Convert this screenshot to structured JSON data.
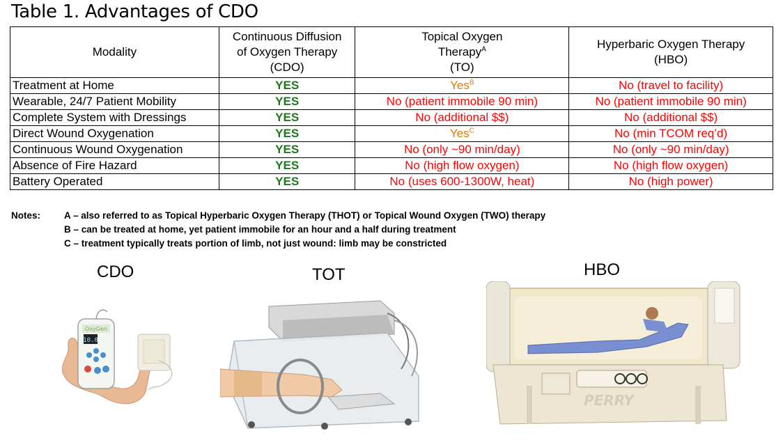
{
  "title": "Table 1. Advantages of CDO",
  "table": {
    "headers": [
      {
        "lines": [
          "Modality"
        ]
      },
      {
        "lines": [
          "Continuous Diffusion",
          "of Oxygen Therapy",
          "(CDO)"
        ]
      },
      {
        "lines": [
          "Topical Oxygen",
          "Therapy",
          "(TO)"
        ],
        "sup": "A"
      },
      {
        "lines": [
          "Hyperbaric Oxygen Therapy",
          "(HBO)"
        ]
      }
    ],
    "rows": [
      {
        "label": "Treatment at Home",
        "cdo": "YES",
        "to": "Yes",
        "to_sup": "B",
        "hbo": "No (travel to facility)"
      },
      {
        "label": "Wearable, 24/7 Patient Mobility",
        "cdo": "YES",
        "to": "No (patient immobile 90 min)",
        "hbo": "No (patient immobile 90 min)"
      },
      {
        "label": "Complete System with Dressings",
        "cdo": "YES",
        "to": "No (additional $$)",
        "hbo": "No (additional $$)"
      },
      {
        "label": "Direct Wound Oxygenation",
        "cdo": "YES",
        "to": "Yes",
        "to_sup": "C",
        "hbo": "No (min TCOM req’d)"
      },
      {
        "label": "Continuous Wound Oxygenation",
        "cdo": "YES",
        "to": "No (only ~90 min/day)",
        "hbo": "No (only ~90 min/day)"
      },
      {
        "label": "Absence of Fire Hazard",
        "cdo": "YES",
        "to": "No (high flow oxygen)",
        "hbo": "No (high flow oxygen)"
      },
      {
        "label": "Battery Operated",
        "cdo": "YES",
        "to": "No (uses 600-1300W, heat)",
        "hbo": "No (high power)"
      }
    ],
    "colors": {
      "yes_green": "#1a7a1a",
      "yes_orange": "#e07b00",
      "no_red": "#ff0000"
    }
  },
  "notes": {
    "label": "Notes:",
    "items": [
      "A – also referred to as Topical Hyperbaric Oxygen Therapy (THOT) or Topical Wound Oxygen (TWO) therapy",
      "B – can be treated at home, yet patient immobile for an hour and a half during treatment",
      "C – treatment typically treats portion of limb, not just wound:  limb may be constricted"
    ]
  },
  "images": [
    {
      "caption": "CDO",
      "device_text": "OxyGen",
      "display": "10.0"
    },
    {
      "caption": "TOT"
    },
    {
      "caption": "HBO",
      "device_text": "PERRY"
    }
  ]
}
